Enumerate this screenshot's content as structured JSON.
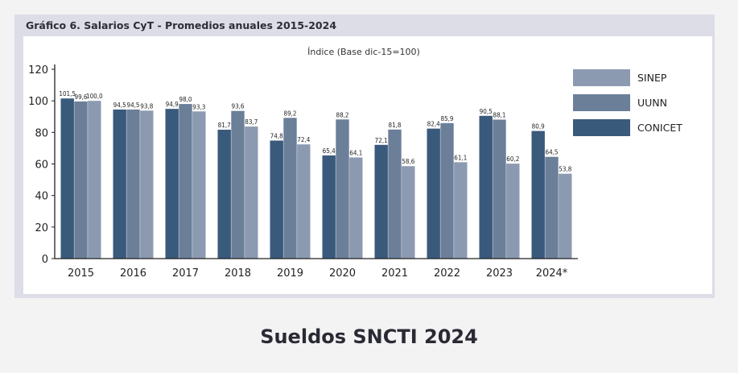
{
  "header": {
    "title": "Gráfico 6. Salarios CyT - Promedios anuales 2015-2024"
  },
  "caption": "Sueldos SNCTI 2024",
  "colors": {
    "CONICET": "#3a5a7c",
    "UUNN": "#6b7f99",
    "SINEP": "#8c9ab1",
    "frame": "#dcdde6",
    "axis": "#222222"
  },
  "chart_data": {
    "type": "bar",
    "subtitle": "Índice (Base dic-15=100)",
    "categories": [
      "2015",
      "2016",
      "2017",
      "2018",
      "2019",
      "2020",
      "2021",
      "2022",
      "2023",
      "2024*"
    ],
    "series": [
      {
        "name": "CONICET",
        "values": [
          101.5,
          94.5,
          94.9,
          81.7,
          74.8,
          65.4,
          72.1,
          82.4,
          90.5,
          80.9
        ]
      },
      {
        "name": "UUNN",
        "values": [
          99.6,
          94.5,
          98.0,
          93.6,
          89.2,
          88.2,
          81.8,
          85.9,
          88.1,
          64.5
        ]
      },
      {
        "name": "SINEP",
        "values": [
          100.0,
          93.8,
          93.3,
          83.7,
          72.4,
          64.1,
          58.6,
          61.1,
          60.2,
          53.8
        ]
      }
    ],
    "data_labels": [
      [
        "101,5",
        "99,6",
        "100,0"
      ],
      [
        "94,5",
        "94,5",
        "93,8"
      ],
      [
        "94,9",
        "98,0",
        "93,3"
      ],
      [
        "81,7",
        "93,6",
        "83,7"
      ],
      [
        "74,8",
        "89,2",
        "72,4"
      ],
      [
        "65,4",
        "88,2",
        "64,1"
      ],
      [
        "72,1",
        "81,8",
        "58,6"
      ],
      [
        "82,4",
        "85,9",
        "61,1"
      ],
      [
        "90,5",
        "88,1",
        "60,2"
      ],
      [
        "80,9",
        "64,5",
        "53,8"
      ]
    ],
    "yticks": [
      "0",
      "20",
      "40",
      "60",
      "80",
      "100",
      "120"
    ],
    "ylim": [
      0,
      120
    ],
    "legend": [
      "SINEP",
      "UUNN",
      "CONICET"
    ],
    "legend_position": "right"
  }
}
